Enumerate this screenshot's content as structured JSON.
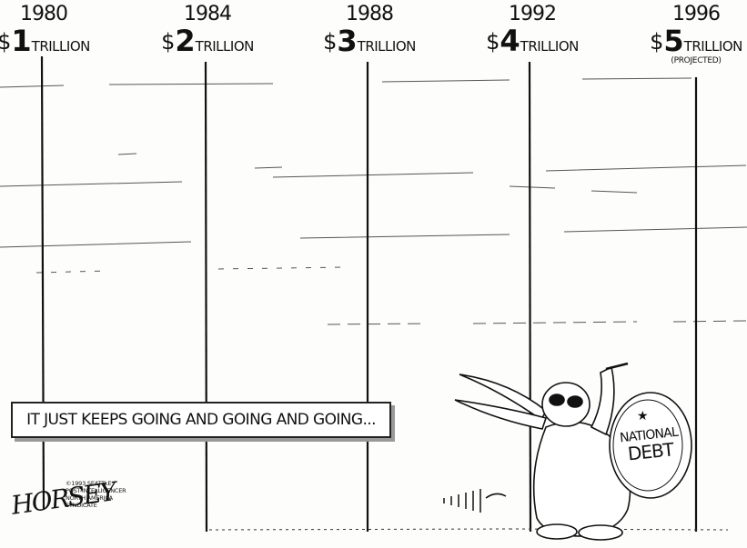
{
  "headers": [
    {
      "year": "1980",
      "dollar": "$",
      "number": "1",
      "unit": "TRILLION",
      "note": ""
    },
    {
      "year": "1984",
      "dollar": "$",
      "number": "2",
      "unit": "TRILLION",
      "note": ""
    },
    {
      "year": "1988",
      "dollar": "$",
      "number": "3",
      "unit": "TRILLION",
      "note": ""
    },
    {
      "year": "1992",
      "dollar": "$",
      "number": "4",
      "unit": "TRILLION",
      "note": ""
    },
    {
      "year": "1996",
      "dollar": "$",
      "number": "5",
      "unit": "TRILLION",
      "note": "(PROJECTED)"
    }
  ],
  "caption": "IT JUST KEEPS GOING AND GOING AND GOING...",
  "drum": {
    "line1": "NATIONAL",
    "line2": "DEBT"
  },
  "credit": {
    "signature": "HORSEY",
    "lines": [
      "©1993 SEATTLE",
      "POST-INTELLIGENCER",
      "NORTH AMERICA",
      "SYNDICATE"
    ]
  },
  "colors": {
    "ink": "#111111",
    "paper": "#fdfdfb"
  }
}
